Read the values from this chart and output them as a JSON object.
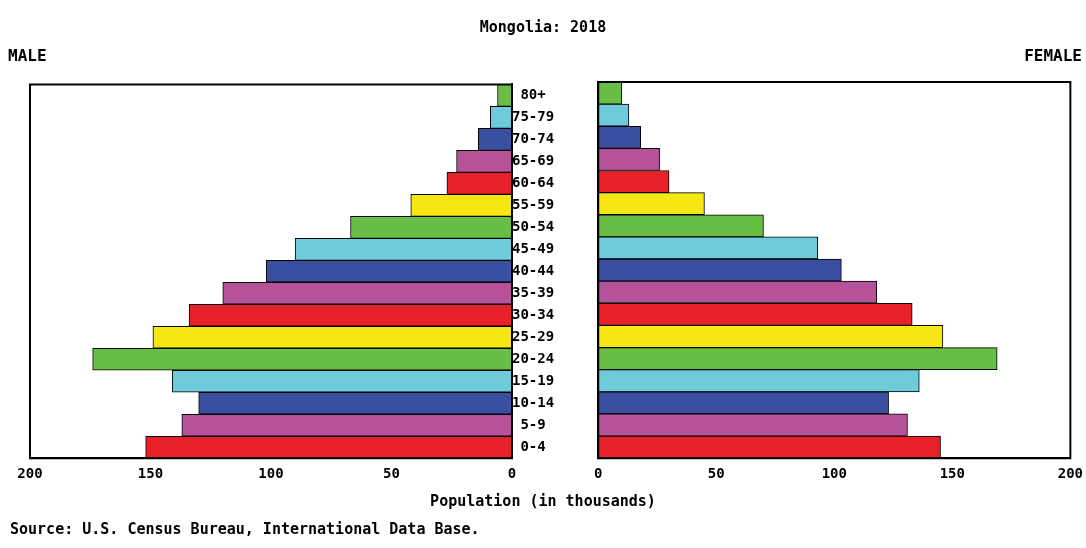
{
  "chart_data": [
    {
      "type": "bar",
      "orientation": "horizontal",
      "title": "Mongolia: 2018",
      "subtitle": "MALE",
      "grid": false,
      "categories": [
        "80+",
        "75-79",
        "70-74",
        "65-69",
        "60-64",
        "55-59",
        "50-54",
        "45-49",
        "40-44",
        "35-39",
        "30-34",
        "25-29",
        "20-24",
        "15-19",
        "10-14",
        "5-9",
        "0-4"
      ],
      "values": [
        6,
        9,
        14,
        23,
        27,
        42,
        67,
        90,
        102,
        120,
        134,
        149,
        174,
        141,
        130,
        137,
        152
      ],
      "colors": [
        "#68bd45",
        "#6dcbda",
        "#3a4fa0",
        "#b5529a",
        "#e8202a",
        "#f5e614",
        "#68bd45",
        "#6dcbda",
        "#3a4fa0",
        "#b5529a",
        "#e8202a",
        "#f5e614",
        "#68bd45",
        "#6dcbda",
        "#3a4fa0",
        "#b5529a",
        "#e8202a"
      ],
      "xlim": [
        200,
        0
      ],
      "xticks": [
        200,
        150,
        100,
        50,
        0
      ]
    },
    {
      "type": "bar",
      "orientation": "horizontal",
      "subtitle": "FEMALE",
      "xlabel": "Population (in thousands)",
      "grid": false,
      "annotations": [
        "Source: U.S. Census Bureau, International Data Base."
      ],
      "tick_labels": "x",
      "categories": [
        null,
        null,
        null,
        null,
        null,
        null,
        null,
        null,
        null,
        null,
        null,
        null,
        null,
        null,
        null,
        null,
        null
      ],
      "values": [
        10,
        13,
        18,
        26,
        30,
        45,
        70,
        93,
        103,
        118,
        133,
        146,
        169,
        136,
        123,
        131,
        145
      ],
      "colors": [
        "#68bd45",
        "#6dcbda",
        "#3a4fa0",
        "#b5529a",
        "#e8202a",
        "#f5e614",
        "#68bd45",
        "#6dcbda",
        "#3a4fa0",
        "#b5529a",
        "#e8202a",
        "#f5e614",
        "#68bd45",
        "#6dcbda",
        "#3a4fa0",
        "#b5529a",
        "#e8202a"
      ],
      "xlim": [
        0,
        200
      ],
      "xticks": [
        0,
        50,
        100,
        150,
        200
      ]
    }
  ]
}
